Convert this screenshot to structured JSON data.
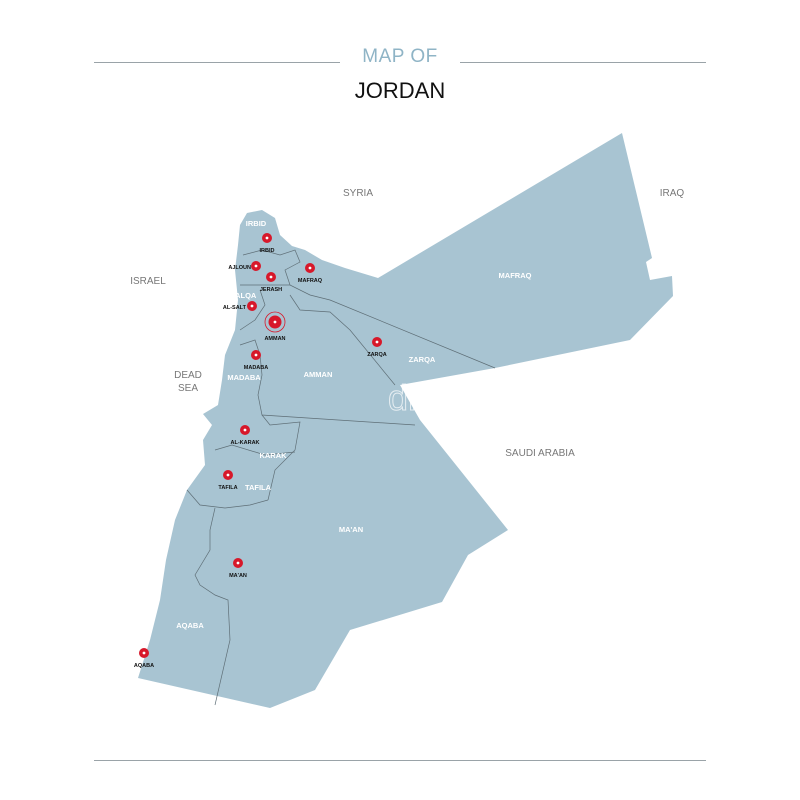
{
  "title": {
    "line1": "MAP OF",
    "line2": "JORDAN"
  },
  "colors": {
    "land": "#a8c4d2",
    "border": "#5f6f77",
    "pin": "#d7182a",
    "title_accent": "#8fb4c6"
  },
  "countries": [
    {
      "name": "SYRIA"
    },
    {
      "name": "IRAQ"
    },
    {
      "name": "ISRAEL"
    },
    {
      "name": "DEAD SEA"
    },
    {
      "name": "SAUDI ARABIA"
    }
  ],
  "regions": [
    "IRBID",
    "BALQA",
    "MAFRAQ",
    "ZARQA",
    "AMMAN",
    "MADABA",
    "KARAK",
    "TAFILA",
    "MA'AN",
    "AQABA"
  ],
  "cities": [
    {
      "name": "IRBID",
      "icon": "pin-icon"
    },
    {
      "name": "AJLOUN",
      "icon": "pin-icon"
    },
    {
      "name": "JERASH",
      "icon": "pin-icon"
    },
    {
      "name": "MAFRAQ",
      "icon": "pin-icon"
    },
    {
      "name": "AL-SALT",
      "icon": "pin-icon"
    },
    {
      "name": "AMMAN",
      "icon": "capital-pin-icon"
    },
    {
      "name": "ZARQA",
      "icon": "pin-icon"
    },
    {
      "name": "MADABA",
      "icon": "pin-icon"
    },
    {
      "name": "AL-KARAK",
      "icon": "pin-icon"
    },
    {
      "name": "TAFILA",
      "icon": "pin-icon"
    },
    {
      "name": "MA'AN",
      "icon": "pin-icon"
    },
    {
      "name": "AQABA",
      "icon": "pin-icon"
    }
  ],
  "watermark": "dreamstime"
}
